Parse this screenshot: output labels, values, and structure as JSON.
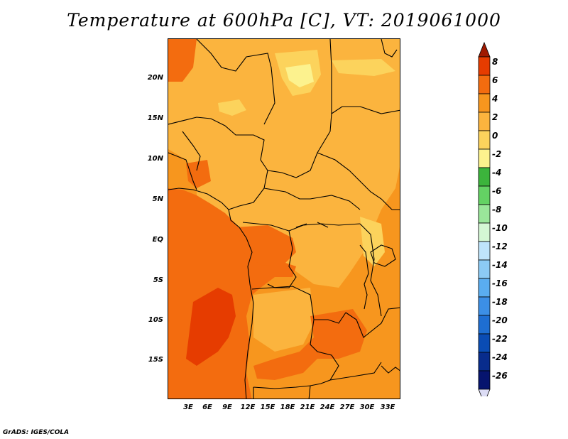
{
  "title": "Temperature at 600hPa [C], VT: 2019061000",
  "credit": "GrADS: IGES/COLA",
  "map": {
    "y_axis_labels": [
      "20N",
      "15N",
      "10N",
      "5N",
      "EQ",
      "5S",
      "10S",
      "15S"
    ],
    "x_axis_labels": [
      "3E",
      "6E",
      "9E",
      "12E",
      "15E",
      "18E",
      "21E",
      "24E",
      "27E",
      "30E",
      "33E"
    ]
  },
  "colorbar": {
    "levels": [
      "8",
      "6",
      "4",
      "2",
      "0",
      "-2",
      "-4",
      "-6",
      "-8",
      "-10",
      "-12",
      "-14",
      "-16",
      "-18",
      "-20",
      "-22",
      "-24",
      "-26"
    ],
    "colors": [
      "#a01a00",
      "#e63c00",
      "#f36c0f",
      "#f7961e",
      "#fbb43e",
      "#fcd35c",
      "#fcf28e",
      "#3cb43c",
      "#64d264",
      "#9ae69a",
      "#d4f7d4",
      "#bfe4fb",
      "#8ccbf5",
      "#5aadf0",
      "#3c8fe6",
      "#1e6ed2",
      "#0a4cb4",
      "#082c8c",
      "#06146e",
      "#dcdcf5"
    ]
  }
}
